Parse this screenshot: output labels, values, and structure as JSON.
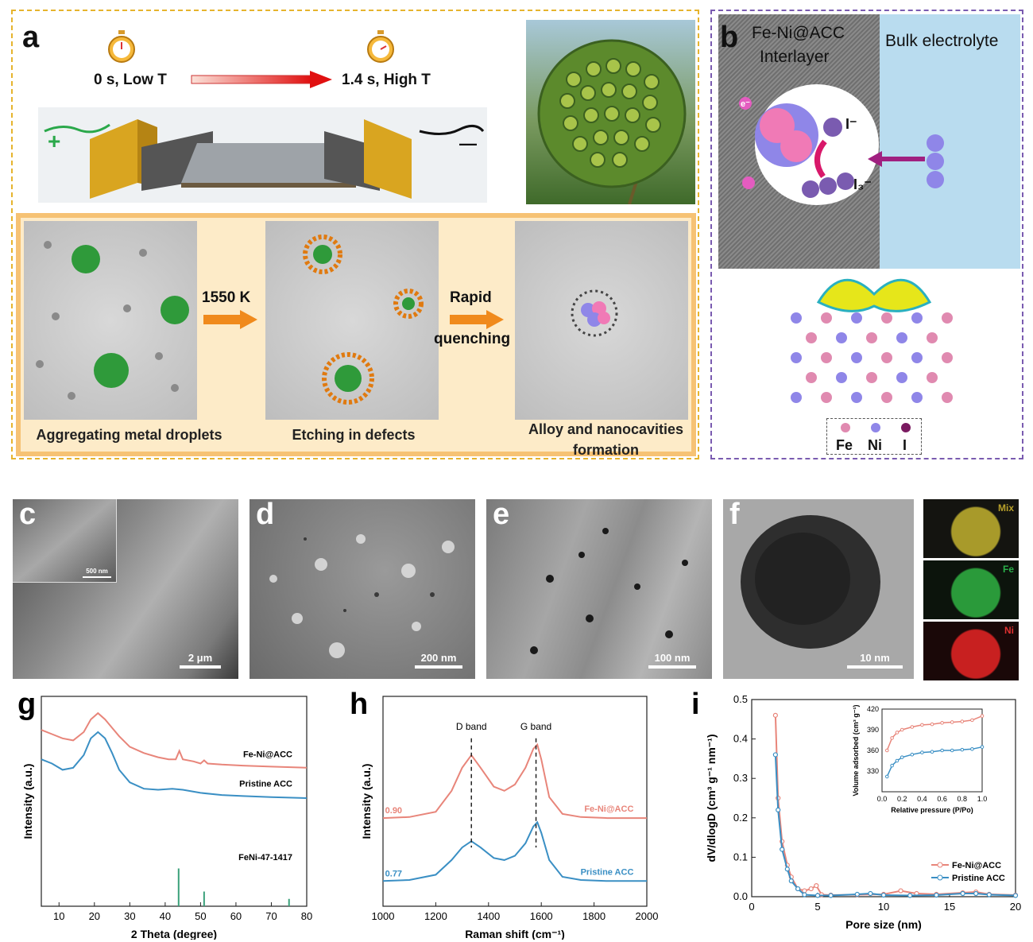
{
  "panel_a": {
    "label": "a",
    "time_start": "0 s, Low T",
    "time_end": "1.4 s, High T",
    "terminal_plus": "+",
    "terminal_minus": "—",
    "step1_arrow": "1550 K",
    "step2_arrow_line1": "Rapid",
    "step2_arrow_line2": "quenching",
    "caption1": "Aggregating metal droplets",
    "caption2": "Etching in defects",
    "caption3_line1": "Alloy and nanocavities",
    "caption3_line2": "formation"
  },
  "panel_b": {
    "label": "b",
    "interlayer_line1": "Fe-Ni@ACC",
    "interlayer_line2": "Interlayer",
    "bulk": "Bulk electrolyte",
    "iodide": "I⁻",
    "triiodide": "I₃⁻",
    "electron": "e⁻",
    "legend_fe": "Fe",
    "legend_ni": "Ni",
    "legend_i": "I"
  },
  "panel_c": {
    "label": "c",
    "scale": "2 μm",
    "inset_scale": "500 nm"
  },
  "panel_d": {
    "label": "d",
    "scale": "200 nm"
  },
  "panel_e": {
    "label": "e",
    "scale": "100 nm"
  },
  "panel_f": {
    "label": "f",
    "scale": "10 nm",
    "map_mix": "Mix",
    "map_fe": "Fe",
    "map_ni": "Ni"
  },
  "colors": {
    "fe_ni_acc": "#e8857a",
    "pristine_acc": "#3a8fc4",
    "reference": "#3aa07a",
    "panel_a_border": "#e6b42e",
    "panel_b_border": "#7a5bb0"
  },
  "chart_data": [
    {
      "id": "g",
      "type": "line",
      "label": "g",
      "xlabel": "2 Theta (degree)",
      "ylabel": "Intensity (a.u.)",
      "xlim": [
        5,
        80
      ],
      "xticks": [
        10,
        20,
        30,
        40,
        50,
        60,
        70,
        80
      ],
      "series": [
        {
          "name": "Fe-Ni@ACC",
          "color": "#e8857a",
          "points": [
            [
              5,
              0.84
            ],
            [
              8,
              0.82
            ],
            [
              11,
              0.8
            ],
            [
              14,
              0.79
            ],
            [
              17,
              0.83
            ],
            [
              19,
              0.89
            ],
            [
              21,
              0.92
            ],
            [
              23,
              0.89
            ],
            [
              25,
              0.85
            ],
            [
              27,
              0.81
            ],
            [
              30,
              0.76
            ],
            [
              34,
              0.73
            ],
            [
              38,
              0.71
            ],
            [
              41,
              0.7
            ],
            [
              43,
              0.7
            ],
            [
              44,
              0.74
            ],
            [
              45,
              0.7
            ],
            [
              48,
              0.69
            ],
            [
              50,
              0.68
            ],
            [
              51,
              0.695
            ],
            [
              52,
              0.68
            ],
            [
              56,
              0.675
            ],
            [
              62,
              0.67
            ],
            [
              70,
              0.665
            ],
            [
              80,
              0.66
            ]
          ]
        },
        {
          "name": "Pristine ACC",
          "color": "#3a8fc4",
          "points": [
            [
              5,
              0.7
            ],
            [
              8,
              0.68
            ],
            [
              11,
              0.65
            ],
            [
              14,
              0.66
            ],
            [
              17,
              0.72
            ],
            [
              19,
              0.8
            ],
            [
              21,
              0.83
            ],
            [
              23,
              0.8
            ],
            [
              25,
              0.73
            ],
            [
              27,
              0.65
            ],
            [
              30,
              0.59
            ],
            [
              34,
              0.56
            ],
            [
              38,
              0.555
            ],
            [
              42,
              0.56
            ],
            [
              45,
              0.555
            ],
            [
              50,
              0.54
            ],
            [
              56,
              0.53
            ],
            [
              62,
              0.525
            ],
            [
              70,
              0.52
            ],
            [
              80,
              0.515
            ]
          ]
        },
        {
          "name": "FeNi-47-1417",
          "color": "#3aa07a",
          "sticks": [
            [
              43.8,
              0.18
            ],
            [
              51.0,
              0.07
            ],
            [
              75.0,
              0.035
            ]
          ]
        }
      ]
    },
    {
      "id": "h",
      "type": "line",
      "label": "h",
      "xlabel": "Raman shift (cm⁻¹)",
      "ylabel": "Intensity (a.u.)",
      "xlim": [
        1000,
        2000
      ],
      "xticks": [
        1000,
        1200,
        1400,
        1600,
        1800,
        2000
      ],
      "annotations": [
        {
          "text": "D band",
          "x": 1335
        },
        {
          "text": "G band",
          "x": 1580
        }
      ],
      "series": [
        {
          "name": "Fe-Ni@ACC",
          "ratio": "0.90",
          "color": "#e8857a",
          "points": [
            [
              1000,
              0.42
            ],
            [
              1100,
              0.425
            ],
            [
              1200,
              0.45
            ],
            [
              1260,
              0.55
            ],
            [
              1300,
              0.66
            ],
            [
              1335,
              0.72
            ],
            [
              1370,
              0.66
            ],
            [
              1420,
              0.57
            ],
            [
              1460,
              0.55
            ],
            [
              1500,
              0.58
            ],
            [
              1540,
              0.66
            ],
            [
              1570,
              0.75
            ],
            [
              1585,
              0.77
            ],
            [
              1600,
              0.7
            ],
            [
              1630,
              0.52
            ],
            [
              1680,
              0.44
            ],
            [
              1750,
              0.425
            ],
            [
              1850,
              0.42
            ],
            [
              2000,
              0.42
            ]
          ]
        },
        {
          "name": "Pristine ACC",
          "ratio": "0.77",
          "color": "#3a8fc4",
          "points": [
            [
              1000,
              0.12
            ],
            [
              1100,
              0.125
            ],
            [
              1200,
              0.15
            ],
            [
              1260,
              0.22
            ],
            [
              1300,
              0.28
            ],
            [
              1335,
              0.31
            ],
            [
              1370,
              0.28
            ],
            [
              1420,
              0.23
            ],
            [
              1460,
              0.22
            ],
            [
              1500,
              0.24
            ],
            [
              1540,
              0.3
            ],
            [
              1570,
              0.38
            ],
            [
              1585,
              0.4
            ],
            [
              1600,
              0.35
            ],
            [
              1630,
              0.22
            ],
            [
              1680,
              0.14
            ],
            [
              1750,
              0.125
            ],
            [
              1850,
              0.12
            ],
            [
              2000,
              0.12
            ]
          ]
        }
      ]
    },
    {
      "id": "i",
      "type": "line",
      "label": "i",
      "xlabel": "Pore size (nm)",
      "ylabel": "dV/dlogD (cm³ g⁻¹ nm⁻¹)",
      "xlim": [
        0,
        20
      ],
      "ylim": [
        0,
        0.5
      ],
      "xticks": [
        0,
        5,
        10,
        15,
        20
      ],
      "yticks": [
        0.0,
        0.1,
        0.2,
        0.3,
        0.4,
        0.5
      ],
      "series": [
        {
          "name": "Fe-Ni@ACC",
          "color": "#e8857a",
          "points": [
            [
              1.8,
              0.46
            ],
            [
              2.0,
              0.25
            ],
            [
              2.3,
              0.14
            ],
            [
              2.7,
              0.08
            ],
            [
              3.0,
              0.05
            ],
            [
              3.5,
              0.02
            ],
            [
              4.0,
              0.015
            ],
            [
              4.5,
              0.02
            ],
            [
              4.9,
              0.028
            ],
            [
              5.3,
              0.005
            ],
            [
              6,
              0.004
            ],
            [
              8,
              0.005
            ],
            [
              10,
              0.006
            ],
            [
              11.3,
              0.015
            ],
            [
              12.5,
              0.008
            ],
            [
              14,
              0.006
            ],
            [
              16,
              0.01
            ],
            [
              17,
              0.012
            ],
            [
              18,
              0.006
            ],
            [
              20,
              0.004
            ]
          ]
        },
        {
          "name": "Pristine ACC",
          "color": "#3a8fc4",
          "points": [
            [
              1.8,
              0.36
            ],
            [
              2.0,
              0.22
            ],
            [
              2.3,
              0.12
            ],
            [
              2.7,
              0.07
            ],
            [
              3.0,
              0.04
            ],
            [
              3.5,
              0.02
            ],
            [
              4.0,
              0.005
            ],
            [
              5,
              0.003
            ],
            [
              6,
              0.003
            ],
            [
              8,
              0.006
            ],
            [
              9,
              0.008
            ],
            [
              10,
              0.004
            ],
            [
              12,
              0.003
            ],
            [
              14,
              0.004
            ],
            [
              16,
              0.008
            ],
            [
              17,
              0.008
            ],
            [
              18,
              0.005
            ],
            [
              20,
              0.003
            ]
          ]
        }
      ],
      "inset": {
        "xlabel": "Relative pressure (P/Po)",
        "ylabel": "Volume adsorbed (cm³ g⁻¹)",
        "xlim": [
          0,
          1.0
        ],
        "ylim": [
          300,
          420
        ],
        "xticks": [
          0.0,
          0.2,
          0.4,
          0.6,
          0.8,
          1.0
        ],
        "yticks": [
          330,
          360,
          390,
          420
        ],
        "series": [
          {
            "name": "Fe-Ni@ACC",
            "color": "#e8857a",
            "points": [
              [
                0.05,
                360
              ],
              [
                0.1,
                378
              ],
              [
                0.15,
                386
              ],
              [
                0.2,
                390
              ],
              [
                0.3,
                394
              ],
              [
                0.4,
                397
              ],
              [
                0.5,
                398
              ],
              [
                0.6,
                400
              ],
              [
                0.7,
                401
              ],
              [
                0.8,
                402
              ],
              [
                0.9,
                404
              ],
              [
                1.0,
                410
              ]
            ]
          },
          {
            "name": "Pristine ACC",
            "color": "#3a8fc4",
            "points": [
              [
                0.05,
                322
              ],
              [
                0.1,
                338
              ],
              [
                0.15,
                345
              ],
              [
                0.2,
                350
              ],
              [
                0.3,
                354
              ],
              [
                0.4,
                357
              ],
              [
                0.5,
                358
              ],
              [
                0.6,
                360
              ],
              [
                0.7,
                360
              ],
              [
                0.8,
                361
              ],
              [
                0.9,
                362
              ],
              [
                1.0,
                365
              ]
            ]
          }
        ]
      }
    }
  ]
}
